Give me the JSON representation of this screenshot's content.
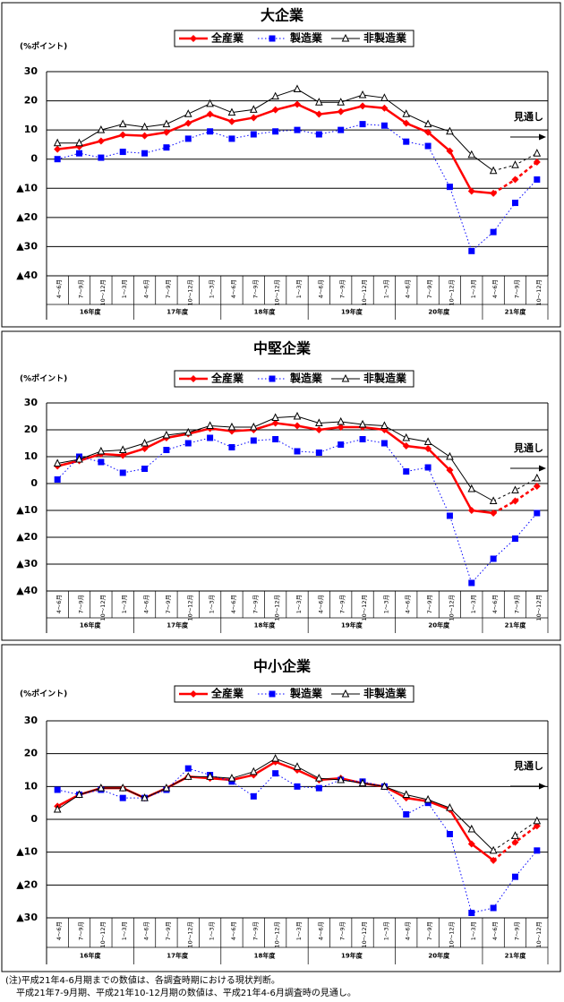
{
  "chart_data": [
    {
      "type": "line",
      "title": "大企業",
      "ylabel": "(%ポイント)",
      "annotation": "見通し",
      "categories": [
        "4～6月",
        "7～9月",
        "10～12月",
        "1～3月",
        "4～6月",
        "7～9月",
        "10～12月",
        "1～3月",
        "4～6月",
        "7～9月",
        "10～12月",
        "1～3月",
        "4～6月",
        "7～9月",
        "10～12月",
        "1～3月",
        "4～6月",
        "7～9月",
        "10～12月",
        "1～3月",
        "4～6月",
        "7～9月",
        "10～12月"
      ],
      "year_labels": [
        "16年度",
        "17年度",
        "18年度",
        "19年度",
        "20年度",
        "21年度"
      ],
      "ylim": [
        -40,
        30
      ],
      "yticks": [
        30,
        20,
        10,
        0,
        {
          "value": -10,
          "label": "▲10"
        },
        {
          "value": -20,
          "label": "▲20"
        },
        {
          "value": -30,
          "label": "▲30"
        },
        {
          "value": -40,
          "label": "▲40"
        }
      ],
      "series": [
        {
          "name": "全産業",
          "color": "#ff0000",
          "marker": "diamond",
          "values": [
            3.4,
            4.3,
            6.2,
            8.3,
            8,
            9.2,
            12.3,
            15.4,
            12.9,
            14.2,
            16.9,
            18.8,
            15.4,
            16.3,
            18.2,
            17.5,
            12.3,
            9.2,
            2.8,
            -11,
            -11.7,
            -7,
            -1
          ]
        },
        {
          "name": "製造業",
          "color": "#0000ff",
          "marker": "square",
          "values": [
            0,
            2,
            0.5,
            2.5,
            2,
            4,
            7,
            9.5,
            7,
            8.5,
            9.5,
            10,
            8.5,
            10,
            12,
            11.5,
            6,
            4.5,
            -9.5,
            -31.5,
            -25,
            -15,
            -7
          ]
        },
        {
          "name": "非製造業",
          "color": "#000000",
          "marker": "triangle",
          "values": [
            5.5,
            5.5,
            10,
            12,
            11,
            12,
            15.5,
            19,
            16,
            17,
            21.5,
            24,
            19.5,
            19.5,
            22,
            21,
            15.5,
            12,
            9.5,
            1.5,
            -4,
            -2,
            2
          ]
        }
      ]
    },
    {
      "type": "line",
      "title": "中堅企業",
      "ylabel": "(%ポイント)",
      "annotation": "見通し",
      "categories": [
        "4～6月",
        "7～9月",
        "10～12月",
        "1～3月",
        "4～6月",
        "7～9月",
        "10～12月",
        "1～3月",
        "4～6月",
        "7～9月",
        "10～12月",
        "1～3月",
        "4～6月",
        "7～9月",
        "10～12月",
        "1～3月",
        "4～6月",
        "7～9月",
        "10～12月",
        "1～3月",
        "4～6月",
        "7～9月",
        "10～12月"
      ],
      "year_labels": [
        "16年度",
        "17年度",
        "18年度",
        "19年度",
        "20年度",
        "21年度"
      ],
      "ylim": [
        -40,
        30
      ],
      "yticks": [
        30,
        20,
        10,
        0,
        {
          "value": -10,
          "label": "▲10"
        },
        {
          "value": -20,
          "label": "▲20"
        },
        {
          "value": -30,
          "label": "▲30"
        },
        {
          "value": -40,
          "label": "▲40"
        }
      ],
      "series": [
        {
          "name": "全産業",
          "color": "#ff0000",
          "marker": "diamond",
          "values": [
            6.5,
            8.5,
            11,
            10.5,
            13,
            17,
            18.5,
            20.5,
            19.5,
            20,
            22.5,
            21.5,
            20,
            21,
            21,
            20,
            14,
            13,
            5,
            -10,
            -11,
            -6.5,
            -1
          ]
        },
        {
          "name": "製造業",
          "color": "#0000ff",
          "marker": "square",
          "values": [
            1.5,
            10,
            8,
            4,
            5.5,
            12.5,
            15,
            17,
            13.5,
            16,
            16.5,
            12,
            11.5,
            14.5,
            16.5,
            15,
            4.5,
            6,
            -12,
            -37,
            -28,
            -20.5,
            -11
          ]
        },
        {
          "name": "非製造業",
          "color": "#000000",
          "marker": "triangle",
          "values": [
            7.5,
            9,
            12,
            12.5,
            15,
            18,
            19,
            21.5,
            21,
            21,
            24.5,
            25,
            22.5,
            23,
            22,
            21.5,
            17,
            15.5,
            10,
            -2,
            -6.5,
            -2.5,
            2
          ]
        }
      ]
    },
    {
      "type": "line",
      "title": "中小企業",
      "ylabel": "(%ポイント)",
      "annotation": "見通し",
      "categories": [
        "4～6月",
        "7～9月",
        "10～12月",
        "1～3月",
        "4～6月",
        "7～9月",
        "10～12月",
        "1～3月",
        "4～6月",
        "7～9月",
        "10～12月",
        "1～3月",
        "4～6月",
        "7～9月",
        "10～12月",
        "1～3月",
        "4～6月",
        "7～9月",
        "10～12月",
        "1～3月",
        "4～6月",
        "7～9月",
        "10～12月"
      ],
      "year_labels": [
        "16年度",
        "17年度",
        "18年度",
        "19年度",
        "20年度",
        "21年度"
      ],
      "ylim": [
        -30,
        30
      ],
      "yticks": [
        30,
        20,
        10,
        0,
        {
          "value": -10,
          "label": "▲10"
        },
        {
          "value": -20,
          "label": "▲20"
        },
        {
          "value": -30,
          "label": "▲30"
        }
      ],
      "series": [
        {
          "name": "全産業",
          "color": "#ff0000",
          "marker": "diamond",
          "values": [
            4,
            7.5,
            9.5,
            9.5,
            6.5,
            9.5,
            13,
            12.5,
            12,
            13.5,
            17.5,
            15,
            12,
            12.5,
            11,
            10,
            6.5,
            5.5,
            3,
            -7.5,
            -12.5,
            -7,
            -2
          ]
        },
        {
          "name": "製造業",
          "color": "#0000ff",
          "marker": "square",
          "values": [
            9,
            7.5,
            9,
            6.5,
            6.5,
            9,
            15.5,
            13.5,
            11.5,
            7,
            14,
            10,
            9.5,
            12,
            11.5,
            10,
            1.5,
            5,
            -4.5,
            -28.5,
            -27,
            -17.5,
            -9.5
          ]
        },
        {
          "name": "非製造業",
          "color": "#000000",
          "marker": "triangle",
          "values": [
            3,
            7.5,
            9.5,
            9.5,
            6.5,
            9.5,
            13,
            13,
            12.5,
            14.5,
            18.5,
            16,
            12.5,
            12,
            11,
            10,
            7.5,
            6,
            3.5,
            -3,
            -9.5,
            -5,
            -0.5
          ]
        }
      ]
    }
  ],
  "notes": [
    "(注)平成21年4-6月期までの数値は、各調査時期における現状判断。",
    "平成21年7-9月期、平成21年10-12月期の数値は、平成21年4-6月調査時の見通し。"
  ]
}
